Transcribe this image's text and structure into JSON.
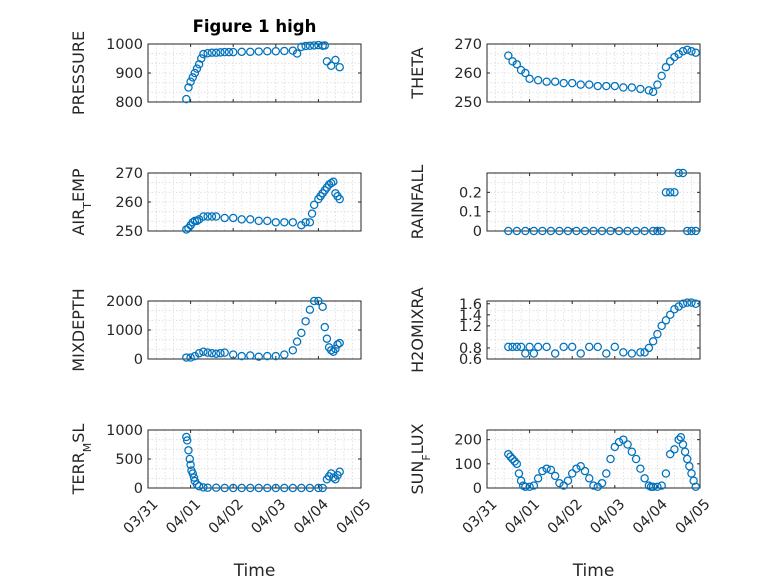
{
  "chart_data": [
    {
      "type": "scatter",
      "title": "Figure 1 high",
      "ylabel": "PRESSURE",
      "xlabel": "",
      "xlim": [
        0,
        5
      ],
      "ylim": [
        800,
        1000
      ],
      "yticks": [
        800,
        900,
        1000
      ],
      "ytick_labels": [
        "800",
        "900",
        "1000"
      ],
      "xticks": [
        0,
        1,
        2,
        3,
        4,
        5
      ],
      "xtick_labels": [],
      "grid": true,
      "series": [
        {
          "x": [
            0.9,
            0.95,
            1.0,
            1.05,
            1.1,
            1.15,
            1.2,
            1.25,
            1.3,
            1.4,
            1.5,
            1.6,
            1.7,
            1.8,
            1.9,
            2.0,
            2.2,
            2.4,
            2.6,
            2.8,
            3.0,
            3.2,
            3.4,
            3.5,
            3.6,
            3.7,
            3.8,
            3.9,
            4.0,
            4.1,
            4.15,
            4.2,
            4.3,
            4.4,
            4.5
          ],
          "y": [
            810,
            850,
            870,
            885,
            900,
            915,
            930,
            950,
            965,
            968,
            970,
            970,
            971,
            972,
            972,
            972,
            973,
            973,
            974,
            975,
            975,
            976,
            977,
            967,
            990,
            993,
            994,
            995,
            996,
            994,
            995,
            940,
            925,
            945,
            920
          ]
        }
      ]
    },
    {
      "type": "scatter",
      "title": "",
      "ylabel": "THETA",
      "xlabel": "",
      "xlim": [
        0,
        5
      ],
      "ylim": [
        250,
        270
      ],
      "yticks": [
        250,
        260,
        270
      ],
      "ytick_labels": [
        "250",
        "260",
        "270"
      ],
      "xticks": [
        0,
        1,
        2,
        3,
        4,
        5
      ],
      "xtick_labels": [],
      "grid": true,
      "series": [
        {
          "x": [
            0.5,
            0.6,
            0.7,
            0.8,
            0.9,
            1.0,
            1.2,
            1.4,
            1.6,
            1.8,
            2.0,
            2.2,
            2.4,
            2.6,
            2.8,
            3.0,
            3.2,
            3.4,
            3.6,
            3.8,
            3.9,
            4.0,
            4.1,
            4.2,
            4.3,
            4.4,
            4.5,
            4.6,
            4.7,
            4.8,
            4.9
          ],
          "y": [
            266,
            264,
            263,
            261,
            260,
            258,
            257.5,
            257,
            257,
            256.5,
            256.5,
            256,
            256,
            255.5,
            255.5,
            255.5,
            255,
            255,
            254.5,
            254,
            253.5,
            256,
            259,
            262,
            264,
            265.5,
            266.5,
            267.5,
            268,
            267.5,
            267
          ]
        }
      ]
    },
    {
      "type": "scatter",
      "title": "",
      "ylabel": "AIR_TEMP",
      "xlabel": "",
      "xlim": [
        0,
        5
      ],
      "ylim": [
        250,
        270
      ],
      "yticks": [
        250,
        260,
        270
      ],
      "ytick_labels": [
        "250",
        "260",
        "270"
      ],
      "xticks": [
        0,
        1,
        2,
        3,
        4,
        5
      ],
      "xtick_labels": [],
      "grid": true,
      "series": [
        {
          "x": [
            0.9,
            0.95,
            1.0,
            1.05,
            1.1,
            1.15,
            1.2,
            1.3,
            1.4,
            1.5,
            1.6,
            1.8,
            2.0,
            2.2,
            2.4,
            2.6,
            2.8,
            3.0,
            3.2,
            3.4,
            3.6,
            3.7,
            3.8,
            3.85,
            3.9,
            4.0,
            4.05,
            4.1,
            4.15,
            4.2,
            4.25,
            4.3,
            4.35,
            4.4,
            4.45,
            4.5
          ],
          "y": [
            250.5,
            251,
            252,
            253,
            253.5,
            253.5,
            254,
            255,
            255,
            255,
            255,
            254.5,
            254.5,
            254,
            254,
            253.5,
            253.5,
            253,
            253,
            253,
            252,
            253,
            253,
            256,
            259,
            261,
            262,
            263,
            264,
            265,
            266,
            266.5,
            267,
            263,
            262,
            261
          ]
        }
      ]
    },
    {
      "type": "scatter",
      "title": "",
      "ylabel": "RAINFALL",
      "xlabel": "",
      "xlim": [
        0,
        5
      ],
      "ylim": [
        0,
        0.3
      ],
      "yticks": [
        0,
        0.1,
        0.2
      ],
      "ytick_labels": [
        "0",
        "0.1",
        "0.2"
      ],
      "xticks": [
        0,
        1,
        2,
        3,
        4,
        5
      ],
      "xtick_labels": [],
      "grid": true,
      "series": [
        {
          "x": [
            0.5,
            0.7,
            0.9,
            1.1,
            1.3,
            1.5,
            1.7,
            1.9,
            2.1,
            2.3,
            2.5,
            2.7,
            2.9,
            3.1,
            3.3,
            3.5,
            3.7,
            3.9,
            4.0,
            4.1,
            4.2,
            4.3,
            4.4,
            4.5,
            4.6,
            4.7,
            4.8,
            4.9
          ],
          "y": [
            0,
            0,
            0,
            0,
            0,
            0,
            0,
            0,
            0,
            0,
            0,
            0,
            0,
            0,
            0,
            0,
            0,
            0,
            0,
            0,
            0.2,
            0.2,
            0.2,
            0.3,
            0.3,
            0,
            0,
            0
          ]
        }
      ]
    },
    {
      "type": "scatter",
      "title": "",
      "ylabel": "MIXDEPTH",
      "xlabel": "",
      "xlim": [
        0,
        5
      ],
      "ylim": [
        0,
        2000
      ],
      "yticks": [
        0,
        1000,
        2000
      ],
      "ytick_labels": [
        "0",
        "1000",
        "2000"
      ],
      "xticks": [
        0,
        1,
        2,
        3,
        4,
        5
      ],
      "xtick_labels": [],
      "grid": true,
      "series": [
        {
          "x": [
            0.9,
            1.0,
            1.1,
            1.2,
            1.3,
            1.4,
            1.5,
            1.6,
            1.7,
            1.8,
            2.0,
            2.2,
            2.4,
            2.6,
            2.8,
            3.0,
            3.2,
            3.4,
            3.5,
            3.6,
            3.7,
            3.8,
            3.9,
            4.0,
            4.1,
            4.15,
            4.2,
            4.25,
            4.3,
            4.35,
            4.4,
            4.45,
            4.5
          ],
          "y": [
            50,
            50,
            100,
            200,
            250,
            220,
            200,
            180,
            200,
            220,
            150,
            100,
            120,
            80,
            100,
            100,
            150,
            300,
            600,
            900,
            1300,
            1700,
            2000,
            2000,
            1800,
            1100,
            700,
            400,
            300,
            250,
            350,
            500,
            550
          ]
        }
      ]
    },
    {
      "type": "scatter",
      "title": "",
      "ylabel": "H2OMIXRA",
      "xlabel": "",
      "xlim": [
        0,
        5
      ],
      "ylim": [
        0.6,
        1.65
      ],
      "yticks": [
        0.6,
        0.8,
        1.2,
        1.4,
        1.6
      ],
      "ytick_labels": [
        "0.6",
        "0.8",
        "1.2",
        "1.4",
        "1.6"
      ],
      "xticks": [
        0,
        1,
        2,
        3,
        4,
        5
      ],
      "xtick_labels": [],
      "grid": true,
      "series": [
        {
          "x": [
            0.5,
            0.6,
            0.7,
            0.8,
            0.9,
            1.0,
            1.1,
            1.2,
            1.4,
            1.6,
            1.8,
            2.0,
            2.2,
            2.4,
            2.6,
            2.8,
            3.0,
            3.2,
            3.4,
            3.6,
            3.7,
            3.8,
            3.9,
            4.0,
            4.1,
            4.2,
            4.3,
            4.4,
            4.5,
            4.6,
            4.7,
            4.8,
            4.9
          ],
          "y": [
            0.82,
            0.82,
            0.82,
            0.82,
            0.7,
            0.82,
            0.7,
            0.82,
            0.82,
            0.7,
            0.82,
            0.82,
            0.7,
            0.82,
            0.82,
            0.7,
            0.82,
            0.72,
            0.7,
            0.72,
            0.72,
            0.8,
            0.92,
            1.05,
            1.2,
            1.3,
            1.4,
            1.5,
            1.55,
            1.6,
            1.62,
            1.62,
            1.6
          ]
        }
      ]
    },
    {
      "type": "scatter",
      "title": "",
      "ylabel": "TERR_MSL",
      "xlabel": "Time",
      "xlim": [
        0,
        5
      ],
      "ylim": [
        0,
        1000
      ],
      "yticks": [
        0,
        500,
        1000
      ],
      "ytick_labels": [
        "0",
        "500",
        "1000"
      ],
      "xticks": [
        0,
        1,
        2,
        3,
        4,
        5
      ],
      "xtick_labels": [
        "03/31",
        "04/01",
        "04/02",
        "04/03",
        "04/04",
        "04/05"
      ],
      "grid": true,
      "series": [
        {
          "x": [
            0.9,
            0.92,
            0.95,
            0.98,
            1.0,
            1.02,
            1.05,
            1.08,
            1.1,
            1.15,
            1.2,
            1.3,
            1.4,
            1.6,
            1.8,
            2.0,
            2.2,
            2.4,
            2.6,
            2.8,
            3.0,
            3.2,
            3.4,
            3.6,
            3.8,
            4.0,
            4.1,
            4.2,
            4.25,
            4.3,
            4.35,
            4.4,
            4.45,
            4.5
          ],
          "y": [
            880,
            820,
            650,
            500,
            400,
            300,
            250,
            180,
            120,
            60,
            30,
            10,
            5,
            5,
            0,
            0,
            0,
            0,
            0,
            0,
            0,
            0,
            0,
            0,
            0,
            0,
            0,
            150,
            200,
            250,
            180,
            150,
            220,
            280
          ]
        }
      ]
    },
    {
      "type": "scatter",
      "title": "",
      "ylabel": "SUN_FLUX",
      "xlabel": "Time",
      "xlim": [
        0,
        5
      ],
      "ylim": [
        0,
        240
      ],
      "yticks": [
        0,
        100,
        200
      ],
      "ytick_labels": [
        "0",
        "100",
        "200"
      ],
      "xticks": [
        0,
        1,
        2,
        3,
        4,
        5
      ],
      "xtick_labels": [
        "03/31",
        "04/01",
        "04/02",
        "04/03",
        "04/04",
        "04/05"
      ],
      "grid": true,
      "series": [
        {
          "x": [
            0.5,
            0.55,
            0.6,
            0.65,
            0.7,
            0.75,
            0.8,
            0.85,
            0.9,
            1.0,
            1.1,
            1.2,
            1.3,
            1.4,
            1.5,
            1.6,
            1.7,
            1.8,
            1.9,
            2.0,
            2.1,
            2.2,
            2.3,
            2.4,
            2.5,
            2.6,
            2.7,
            2.8,
            2.9,
            3.0,
            3.1,
            3.2,
            3.3,
            3.4,
            3.5,
            3.6,
            3.7,
            3.8,
            3.85,
            3.9,
            4.0,
            4.1,
            4.2,
            4.3,
            4.4,
            4.5,
            4.55,
            4.6,
            4.65,
            4.7,
            4.75,
            4.8,
            4.85,
            4.9
          ],
          "y": [
            140,
            130,
            120,
            110,
            100,
            60,
            30,
            10,
            5,
            5,
            10,
            40,
            70,
            80,
            75,
            50,
            20,
            10,
            30,
            60,
            80,
            90,
            70,
            40,
            10,
            5,
            20,
            60,
            120,
            170,
            190,
            200,
            180,
            150,
            120,
            80,
            40,
            10,
            5,
            5,
            5,
            10,
            60,
            140,
            160,
            200,
            210,
            180,
            150,
            120,
            90,
            60,
            30,
            5
          ]
        }
      ]
    }
  ]
}
